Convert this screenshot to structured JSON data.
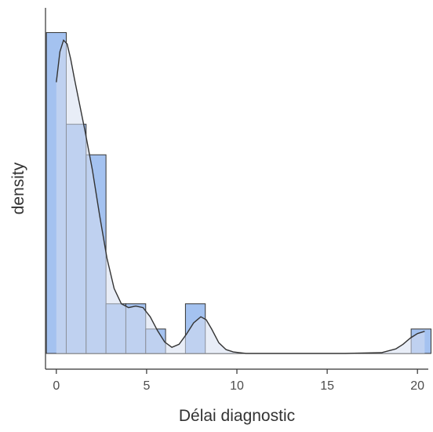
{
  "chart_data": {
    "type": "bar",
    "subtype": "histogram-with-density",
    "xlabel": "Délai diagnostic",
    "ylabel": "density",
    "xlim": [
      -0.6,
      20.6
    ],
    "ylim": [
      0,
      0.44
    ],
    "x_ticks": [
      0,
      5,
      10,
      15,
      20
    ],
    "y_ticks_shown": false,
    "grid": false,
    "legend": "none",
    "bin_width": 1.1,
    "bins": [
      {
        "x0": -0.55,
        "x1": 0.55,
        "density": 0.42
      },
      {
        "x0": 0.55,
        "x1": 1.65,
        "density": 0.3
      },
      {
        "x0": 1.65,
        "x1": 2.75,
        "density": 0.26
      },
      {
        "x0": 2.75,
        "x1": 3.85,
        "density": 0.065
      },
      {
        "x0": 3.85,
        "x1": 4.95,
        "density": 0.065
      },
      {
        "x0": 4.95,
        "x1": 6.05,
        "density": 0.032
      },
      {
        "x0": 7.15,
        "x1": 8.25,
        "density": 0.065
      },
      {
        "x0": 19.65,
        "x1": 20.75,
        "density": 0.032
      }
    ],
    "density_curve": {
      "x": [
        0,
        0.2,
        0.4,
        0.6,
        0.8,
        1.0,
        1.3,
        1.6,
        2.0,
        2.4,
        2.8,
        3.2,
        3.6,
        4.0,
        4.4,
        4.8,
        5.2,
        5.6,
        6.0,
        6.4,
        6.8,
        7.2,
        7.6,
        8.0,
        8.3,
        8.6,
        9.0,
        9.4,
        9.8,
        10.5,
        12,
        14,
        16,
        18,
        18.8,
        19.2,
        19.6,
        20.0,
        20.4
      ],
      "y": [
        0.355,
        0.395,
        0.41,
        0.405,
        0.385,
        0.36,
        0.325,
        0.29,
        0.24,
        0.18,
        0.125,
        0.085,
        0.065,
        0.06,
        0.062,
        0.06,
        0.048,
        0.03,
        0.015,
        0.008,
        0.012,
        0.025,
        0.04,
        0.048,
        0.044,
        0.032,
        0.014,
        0.005,
        0.002,
        0.0,
        0.0,
        0.0,
        0.0,
        0.001,
        0.006,
        0.012,
        0.02,
        0.026,
        0.029
      ]
    },
    "colors": {
      "bar_fill": "#a4c2f0",
      "bar_stroke": "#333333",
      "density_fill": "#d6dff0",
      "density_line": "#333333",
      "axis": "#333333"
    }
  }
}
